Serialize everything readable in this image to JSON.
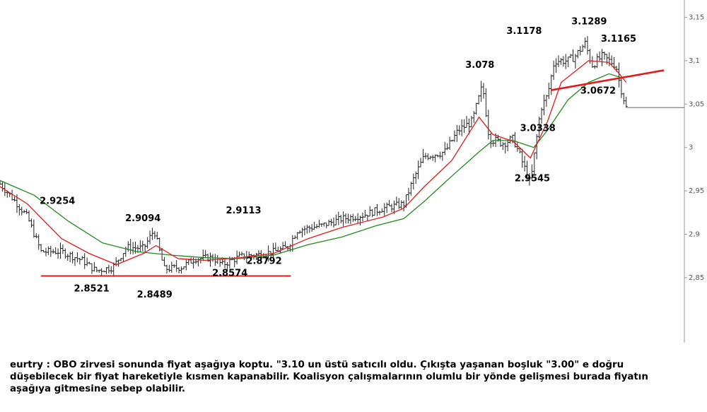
{
  "caption": "eurtry : OBO zirvesi sonunda fiyat aşağıya koptu. \"3.10 un üstü satıcılı oldu. Çıkışta yaşanan boşluk \"3.00\" e doğru düşebilecek bir fiyat hareketiyle kısmen kapanabilir. Koalisyon çalışmalarının olumlu bir yönde gelişmesi burada fiyatın aşağıya gitmesine sebep olabilir.",
  "colors": {
    "price": "#222222",
    "ma_fast": "#e21a1a",
    "ma_slow": "#1f8a1f",
    "trendline": "#e21a1a",
    "axis": "#999999"
  },
  "chart_data": {
    "type": "candlestick",
    "symbol": "eurtry",
    "ylim": [
      2.775,
      3.17
    ],
    "y_ticks": [
      "3,15",
      "3,1",
      "3,05",
      "3",
      "2,95",
      "2,9",
      "2,85"
    ],
    "y_tick_values": [
      3.15,
      3.1,
      3.05,
      3.0,
      2.95,
      2.9,
      2.85
    ],
    "last_price": 3.046,
    "price_path": [
      [
        0,
        2.958
      ],
      [
        0.02,
        2.94
      ],
      [
        0.04,
        2.92
      ],
      [
        0.06,
        2.88
      ],
      [
        0.09,
        2.88
      ],
      [
        0.12,
        2.87
      ],
      [
        0.14,
        2.858
      ],
      [
        0.165,
        2.862
      ],
      [
        0.185,
        2.885
      ],
      [
        0.21,
        2.884
      ],
      [
        0.225,
        2.905
      ],
      [
        0.24,
        2.86
      ],
      [
        0.265,
        2.862
      ],
      [
        0.285,
        2.872
      ],
      [
        0.31,
        2.873
      ],
      [
        0.325,
        2.865
      ],
      [
        0.35,
        2.874
      ],
      [
        0.38,
        2.877
      ],
      [
        0.4,
        2.88
      ],
      [
        0.42,
        2.885
      ],
      [
        0.435,
        2.905
      ],
      [
        0.47,
        2.91
      ],
      [
        0.5,
        2.918
      ],
      [
        0.53,
        2.922
      ],
      [
        0.56,
        2.93
      ],
      [
        0.59,
        2.935
      ],
      [
        0.605,
        2.965
      ],
      [
        0.62,
        2.99
      ],
      [
        0.65,
        2.995
      ],
      [
        0.67,
        3.02
      ],
      [
        0.69,
        3.03
      ],
      [
        0.705,
        3.072
      ],
      [
        0.715,
        3.01
      ],
      [
        0.735,
        3.005
      ],
      [
        0.75,
        3.01
      ],
      [
        0.76,
        2.99
      ],
      [
        0.775,
        2.958
      ],
      [
        0.79,
        3.045
      ],
      [
        0.8,
        3.06
      ],
      [
        0.81,
        3.1
      ],
      [
        0.83,
        3.1
      ],
      [
        0.84,
        3.105
      ],
      [
        0.855,
        3.12
      ],
      [
        0.865,
        3.095
      ],
      [
        0.88,
        3.105
      ],
      [
        0.9,
        3.095
      ],
      [
        0.905,
        3.075
      ],
      [
        0.915,
        3.046
      ]
    ],
    "ma_fast": [
      [
        0,
        2.955
      ],
      [
        0.04,
        2.935
      ],
      [
        0.09,
        2.895
      ],
      [
        0.13,
        2.878
      ],
      [
        0.17,
        2.865
      ],
      [
        0.21,
        2.878
      ],
      [
        0.228,
        2.887
      ],
      [
        0.26,
        2.872
      ],
      [
        0.3,
        2.87
      ],
      [
        0.35,
        2.873
      ],
      [
        0.4,
        2.878
      ],
      [
        0.45,
        2.895
      ],
      [
        0.5,
        2.908
      ],
      [
        0.56,
        2.92
      ],
      [
        0.59,
        2.93
      ],
      [
        0.62,
        2.955
      ],
      [
        0.66,
        2.985
      ],
      [
        0.7,
        3.035
      ],
      [
        0.72,
        3.015
      ],
      [
        0.75,
        3.007
      ],
      [
        0.775,
        2.988
      ],
      [
        0.8,
        3.03
      ],
      [
        0.82,
        3.075
      ],
      [
        0.86,
        3.1
      ],
      [
        0.89,
        3.098
      ],
      [
        0.905,
        3.085
      ],
      [
        0.915,
        3.075
      ]
    ],
    "ma_slow": [
      [
        0,
        2.962
      ],
      [
        0.05,
        2.945
      ],
      [
        0.1,
        2.915
      ],
      [
        0.15,
        2.89
      ],
      [
        0.2,
        2.88
      ],
      [
        0.25,
        2.876
      ],
      [
        0.3,
        2.873
      ],
      [
        0.35,
        2.872
      ],
      [
        0.4,
        2.876
      ],
      [
        0.45,
        2.888
      ],
      [
        0.5,
        2.897
      ],
      [
        0.55,
        2.91
      ],
      [
        0.59,
        2.918
      ],
      [
        0.62,
        2.938
      ],
      [
        0.66,
        2.967
      ],
      [
        0.7,
        2.995
      ],
      [
        0.72,
        3.008
      ],
      [
        0.75,
        3.008
      ],
      [
        0.78,
        3.0
      ],
      [
        0.8,
        3.02
      ],
      [
        0.83,
        3.055
      ],
      [
        0.86,
        3.075
      ],
      [
        0.89,
        3.085
      ],
      [
        0.91,
        3.08
      ]
    ],
    "trendlines": [
      {
        "from": [
          0.06,
          2.852
        ],
        "to": [
          0.425,
          2.852
        ]
      },
      {
        "from": [
          0.805,
          3.066
        ],
        "to": [
          0.97,
          3.089
        ]
      }
    ],
    "annotations": [
      {
        "text": "2.9254",
        "x": 0.058,
        "y": 2.935
      },
      {
        "text": "2.8521",
        "x": 0.108,
        "y": 2.834
      },
      {
        "text": "2.9094",
        "x": 0.183,
        "y": 2.915
      },
      {
        "text": "2.8489",
        "x": 0.2,
        "y": 2.827
      },
      {
        "text": "2.9113",
        "x": 0.33,
        "y": 2.924
      },
      {
        "text": "2.8792",
        "x": 0.36,
        "y": 2.866
      },
      {
        "text": "2.8574",
        "x": 0.31,
        "y": 2.852
      },
      {
        "text": "3.078",
        "x": 0.68,
        "y": 3.092
      },
      {
        "text": "3.1178",
        "x": 0.74,
        "y": 3.131
      },
      {
        "text": "3.1289",
        "x": 0.835,
        "y": 3.142
      },
      {
        "text": "3.1165",
        "x": 0.878,
        "y": 3.122
      },
      {
        "text": "3.0672",
        "x": 0.848,
        "y": 3.062
      },
      {
        "text": "3.0338",
        "x": 0.76,
        "y": 3.019
      },
      {
        "text": "2.9545",
        "x": 0.752,
        "y": 2.961
      }
    ]
  }
}
